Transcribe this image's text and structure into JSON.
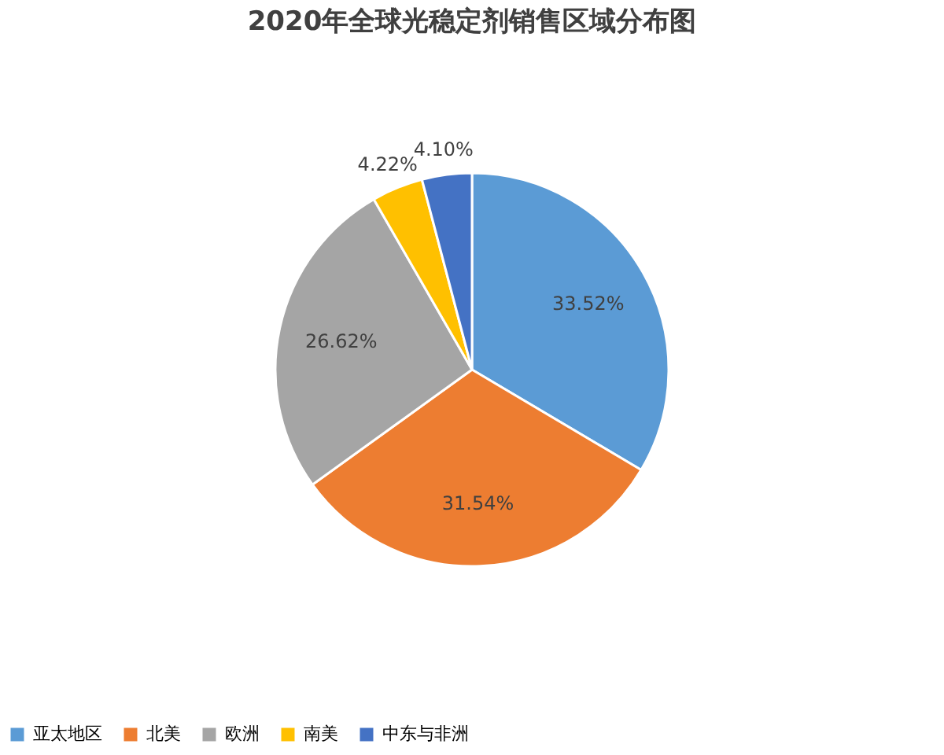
{
  "chart_data": {
    "type": "pie",
    "title": "2020年全球光稳定剂销售区域分布图",
    "categories": [
      "亚太地区",
      "北美",
      "欧洲",
      "南美",
      "中东与非洲"
    ],
    "values": [
      33.52,
      31.54,
      26.62,
      4.22,
      4.1
    ],
    "value_labels": [
      "33.52%",
      "31.54%",
      "26.62%",
      "4.22%",
      "4.10%"
    ],
    "colors": [
      "#5b9bd5",
      "#ed7d31",
      "#a5a5a5",
      "#ffc000",
      "#4472c4"
    ],
    "legend": "bottom"
  }
}
